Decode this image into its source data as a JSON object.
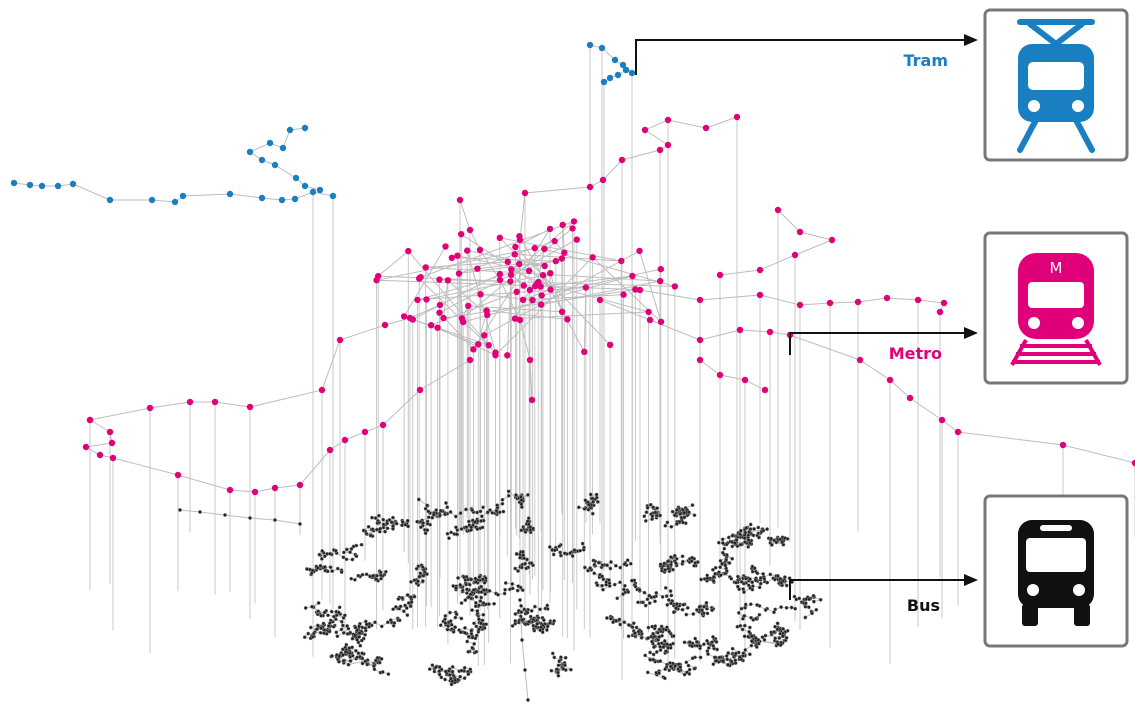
{
  "labels": {
    "tram": "Tram",
    "metro": "Metro",
    "bus": "Bus"
  },
  "icons": {
    "metro_letter": "M"
  }
}
